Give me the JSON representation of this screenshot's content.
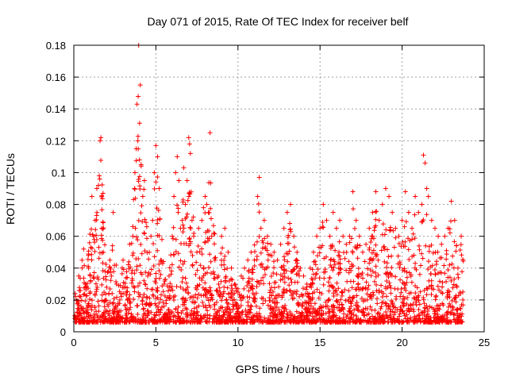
{
  "chart_data": {
    "type": "scatter",
    "title": "Day 071 of 2015, Rate Of TEC Index for receiver belf",
    "xlabel": "GPS time / hours",
    "ylabel": "ROTI / TECUs",
    "xlim": [
      0,
      25
    ],
    "ylim": [
      0,
      0.18
    ],
    "xticks": [
      0,
      5,
      10,
      15,
      20,
      25
    ],
    "yticks": [
      0,
      0.02,
      0.04,
      0.06,
      0.08,
      0.1,
      0.12,
      0.14,
      0.16,
      0.18
    ],
    "xtick_labels": [
      "0",
      "5",
      "10",
      "15",
      "20",
      "25"
    ],
    "ytick_labels": [
      "0",
      "0.02",
      "0.04",
      "0.06",
      "0.08",
      "0.1",
      "0.12",
      "0.14",
      "0.16",
      "0.18"
    ],
    "grid": true,
    "marker": "+",
    "color": "#ff0000",
    "series": [
      {
        "points": [
          [
            0.1,
            0.008
          ],
          [
            0.2,
            0.012
          ],
          [
            0.3,
            0.035
          ],
          [
            0.4,
            0.022
          ],
          [
            0.5,
            0.045
          ],
          [
            0.6,
            0.052
          ],
          [
            0.7,
            0.03
          ],
          [
            0.8,
            0.015
          ],
          [
            0.9,
            0.04
          ],
          [
            1.0,
            0.025
          ],
          [
            1.1,
            0.085
          ],
          [
            1.2,
            0.06
          ],
          [
            1.3,
            0.07
          ],
          [
            1.4,
            0.09
          ],
          [
            1.5,
            0.092
          ],
          [
            1.55,
            0.098
          ],
          [
            1.6,
            0.12
          ],
          [
            1.65,
            0.122
          ],
          [
            1.7,
            0.065
          ],
          [
            1.8,
            0.05
          ],
          [
            1.9,
            0.038
          ],
          [
            2.0,
            0.028
          ],
          [
            2.2,
            0.045
          ],
          [
            2.4,
            0.075
          ],
          [
            2.6,
            0.03
          ],
          [
            2.8,
            0.02
          ],
          [
            3.0,
            0.045
          ],
          [
            3.2,
            0.025
          ],
          [
            3.4,
            0.055
          ],
          [
            3.6,
            0.06
          ],
          [
            3.7,
            0.09
          ],
          [
            3.8,
            0.115
          ],
          [
            3.85,
            0.143
          ],
          [
            3.9,
            0.12
          ],
          [
            3.95,
            0.18
          ],
          [
            4.0,
            0.108
          ],
          [
            4.05,
            0.155
          ],
          [
            4.1,
            0.105
          ],
          [
            4.2,
            0.085
          ],
          [
            4.3,
            0.095
          ],
          [
            4.5,
            0.035
          ],
          [
            4.6,
            0.05
          ],
          [
            4.7,
            0.06
          ],
          [
            4.8,
            0.07
          ],
          [
            4.9,
            0.1
          ],
          [
            5.0,
            0.117
          ],
          [
            5.1,
            0.11
          ],
          [
            5.2,
            0.09
          ],
          [
            5.3,
            0.045
          ],
          [
            5.5,
            0.03
          ],
          [
            5.8,
            0.035
          ],
          [
            6.0,
            0.06
          ],
          [
            6.1,
            0.085
          ],
          [
            6.2,
            0.1
          ],
          [
            6.3,
            0.11
          ],
          [
            6.4,
            0.095
          ],
          [
            6.5,
            0.065
          ],
          [
            6.6,
            0.07
          ],
          [
            6.7,
            0.103
          ],
          [
            6.8,
            0.08
          ],
          [
            6.9,
            0.095
          ],
          [
            7.0,
            0.122
          ],
          [
            7.05,
            0.118
          ],
          [
            7.1,
            0.112
          ],
          [
            7.2,
            0.07
          ],
          [
            7.3,
            0.06
          ],
          [
            7.5,
            0.05
          ],
          [
            7.6,
            0.065
          ],
          [
            7.8,
            0.07
          ],
          [
            7.9,
            0.078
          ],
          [
            8.0,
            0.085
          ],
          [
            8.1,
            0.08
          ],
          [
            8.2,
            0.075
          ],
          [
            8.3,
            0.125
          ],
          [
            8.4,
            0.06
          ],
          [
            8.6,
            0.045
          ],
          [
            8.8,
            0.035
          ],
          [
            9.0,
            0.06
          ],
          [
            9.2,
            0.065
          ],
          [
            9.4,
            0.05
          ],
          [
            9.6,
            0.04
          ],
          [
            9.8,
            0.03
          ],
          [
            10.0,
            0.025
          ],
          [
            10.2,
            0.035
          ],
          [
            10.4,
            0.04
          ],
          [
            10.6,
            0.045
          ],
          [
            10.8,
            0.05
          ],
          [
            11.0,
            0.045
          ],
          [
            11.2,
            0.085
          ],
          [
            11.3,
            0.097
          ],
          [
            11.4,
            0.065
          ],
          [
            11.6,
            0.07
          ],
          [
            11.8,
            0.06
          ],
          [
            12.0,
            0.055
          ],
          [
            12.2,
            0.05
          ],
          [
            12.4,
            0.045
          ],
          [
            12.6,
            0.055
          ],
          [
            12.8,
            0.065
          ],
          [
            13.0,
            0.075
          ],
          [
            13.2,
            0.08
          ],
          [
            13.4,
            0.06
          ],
          [
            13.6,
            0.05
          ],
          [
            13.8,
            0.04
          ],
          [
            14.0,
            0.035
          ],
          [
            14.2,
            0.03
          ],
          [
            14.4,
            0.04
          ],
          [
            14.6,
            0.05
          ],
          [
            14.8,
            0.06
          ],
          [
            15.0,
            0.065
          ],
          [
            15.2,
            0.08
          ],
          [
            15.4,
            0.07
          ],
          [
            15.6,
            0.06
          ],
          [
            15.8,
            0.075
          ],
          [
            16.0,
            0.065
          ],
          [
            16.2,
            0.07
          ],
          [
            16.4,
            0.06
          ],
          [
            16.6,
            0.055
          ],
          [
            16.8,
            0.06
          ],
          [
            17.0,
            0.088
          ],
          [
            17.2,
            0.07
          ],
          [
            17.4,
            0.06
          ],
          [
            17.6,
            0.05
          ],
          [
            17.8,
            0.055
          ],
          [
            18.0,
            0.065
          ],
          [
            18.2,
            0.075
          ],
          [
            18.4,
            0.088
          ],
          [
            18.6,
            0.07
          ],
          [
            18.8,
            0.08
          ],
          [
            19.0,
            0.09
          ],
          [
            19.2,
            0.085
          ],
          [
            19.4,
            0.075
          ],
          [
            19.6,
            0.065
          ],
          [
            19.8,
            0.06
          ],
          [
            20.0,
            0.07
          ],
          [
            20.2,
            0.088
          ],
          [
            20.4,
            0.075
          ],
          [
            20.6,
            0.065
          ],
          [
            20.8,
            0.085
          ],
          [
            21.0,
            0.075
          ],
          [
            21.2,
            0.08
          ],
          [
            21.3,
            0.111
          ],
          [
            21.4,
            0.106
          ],
          [
            21.5,
            0.09
          ],
          [
            21.6,
            0.085
          ],
          [
            21.8,
            0.07
          ],
          [
            22.0,
            0.065
          ],
          [
            22.2,
            0.06
          ],
          [
            22.4,
            0.055
          ],
          [
            22.6,
            0.06
          ],
          [
            22.8,
            0.065
          ],
          [
            23.0,
            0.082
          ],
          [
            23.2,
            0.07
          ],
          [
            23.4,
            0.04
          ],
          [
            23.6,
            0.06
          ],
          [
            23.7,
            0.02
          ]
        ]
      }
    ]
  }
}
